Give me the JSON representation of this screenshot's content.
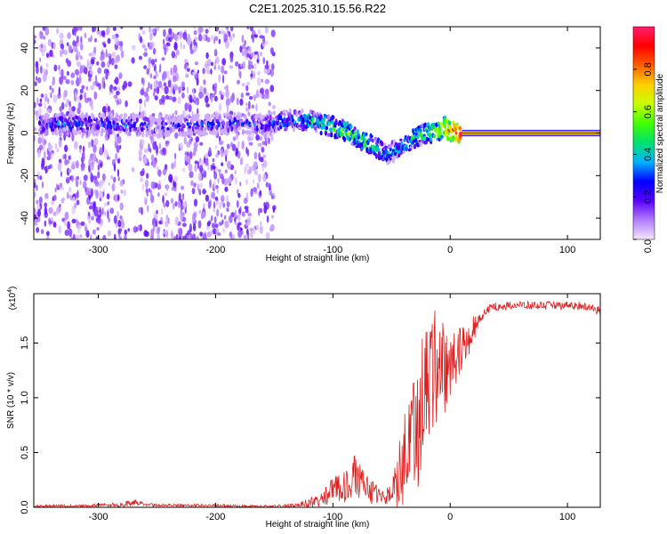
{
  "title": "C2E1.2025.310.15.56.R22",
  "chart_data": [
    {
      "type": "heatmap",
      "title": "C2E1.2025.310.15.56.R22",
      "xlabel": "Height of straight line (km)",
      "ylabel": "Frequency (Hz)",
      "xlim": [
        -355,
        128
      ],
      "ylim": [
        -50,
        50
      ],
      "xticks": [
        -300,
        -200,
        -100,
        0,
        100
      ],
      "xtick_labels": [
        "-300",
        "-200",
        "-100",
        "0",
        "100"
      ],
      "yticks": [
        40,
        20,
        0,
        -20,
        -40
      ],
      "ytick_labels": [
        "40",
        "20",
        "0",
        "-20",
        "-40"
      ],
      "colorbar": {
        "label": "Normalized spectral amplitude",
        "range": [
          0,
          1
        ],
        "ticks": [
          0.0,
          0.2,
          0.4,
          0.6,
          0.8
        ],
        "tick_labels": [
          "0.0",
          "0.2",
          "0.4",
          "0.6",
          "0.8"
        ],
        "colors": [
          "#f4e6ff",
          "#b27dff",
          "#5a00ff",
          "#0000ff",
          "#00b4ff",
          "#00e070",
          "#40ff00",
          "#c8ff00",
          "#ffd000",
          "#ff6000",
          "#ff0000",
          "#ff1e6e"
        ]
      },
      "ridge": {
        "x": [
          -290,
          -270,
          -250,
          -220,
          -200,
          -180,
          -160,
          -140,
          -120,
          -100,
          -90,
          -80,
          -70,
          -60,
          -55,
          -50,
          -40,
          -30,
          -20,
          -10,
          -5,
          0,
          5,
          10,
          20,
          60,
          128
        ],
        "frequency": [
          4,
          4,
          3,
          4,
          4,
          5,
          4,
          6,
          6,
          3,
          1,
          -2,
          -5,
          -8,
          -10,
          -9,
          -6,
          -2,
          0,
          1,
          3,
          1,
          1,
          0,
          0,
          0,
          0
        ],
        "amplitude": [
          0.25,
          0.22,
          0.18,
          0.18,
          0.2,
          0.2,
          0.22,
          0.3,
          0.4,
          0.45,
          0.5,
          0.45,
          0.45,
          0.4,
          0.3,
          0.3,
          0.35,
          0.4,
          0.5,
          0.6,
          0.7,
          0.75,
          0.85,
          0.9,
          0.95,
          0.95,
          0.95
        ]
      },
      "noise_region": {
        "x_range": [
          -355,
          -150
        ],
        "frequency_range": [
          -50,
          50
        ],
        "amplitude_range": [
          0.02,
          0.18
        ]
      }
    },
    {
      "type": "line",
      "xlabel": "Height of straight line (km)",
      "ylabel": "SNR (10 * v/v)",
      "y_multiplier_label": "(x10",
      "y_multiplier_exponent": "4",
      "y_multiplier_suffix": ")",
      "xlim": [
        -355,
        128
      ],
      "ylim": [
        0,
        1.95
      ],
      "xticks": [
        -300,
        -200,
        -100,
        0,
        100
      ],
      "xtick_labels": [
        "-300",
        "-200",
        "-100",
        "0",
        "100"
      ],
      "yticks": [
        0.0,
        0.5,
        1.0,
        1.5
      ],
      "ytick_labels": [
        "0.0",
        "0.5",
        "1.0",
        "1.5"
      ],
      "series": [
        {
          "name": "SNR",
          "color": "#e02020",
          "x": [
            -355,
            -300,
            -280,
            -270,
            -250,
            -200,
            -170,
            -150,
            -130,
            -120,
            -110,
            -100,
            -90,
            -85,
            -80,
            -75,
            -70,
            -65,
            -60,
            -55,
            -50,
            -45,
            -40,
            -35,
            -30,
            -25,
            -20,
            -15,
            -10,
            -5,
            0,
            5,
            10,
            15,
            20,
            25,
            30,
            35,
            40,
            50,
            60,
            80,
            100,
            110,
            120,
            128
          ],
          "values": [
            0.01,
            0.02,
            0.03,
            0.05,
            0.02,
            0.02,
            0.01,
            0.01,
            0.02,
            0.05,
            0.1,
            0.18,
            0.22,
            0.3,
            0.33,
            0.25,
            0.2,
            0.15,
            0.12,
            0.1,
            0.2,
            0.3,
            0.45,
            0.65,
            0.85,
            1.05,
            1.25,
            1.35,
            1.4,
            1.35,
            1.4,
            1.45,
            1.5,
            1.55,
            1.65,
            1.75,
            1.8,
            1.83,
            1.84,
            1.85,
            1.85,
            1.85,
            1.85,
            1.85,
            1.83,
            1.8
          ],
          "spread": [
            0.01,
            0.01,
            0.02,
            0.02,
            0.01,
            0.01,
            0.01,
            0.01,
            0.02,
            0.04,
            0.06,
            0.09,
            0.12,
            0.15,
            0.15,
            0.12,
            0.1,
            0.08,
            0.06,
            0.06,
            0.15,
            0.2,
            0.35,
            0.45,
            0.5,
            0.5,
            0.5,
            0.45,
            0.4,
            0.35,
            0.25,
            0.2,
            0.15,
            0.12,
            0.1,
            0.05,
            0.03,
            0.03,
            0.03,
            0.03,
            0.03,
            0.03,
            0.03,
            0.03,
            0.03,
            0.03
          ]
        }
      ]
    }
  ]
}
